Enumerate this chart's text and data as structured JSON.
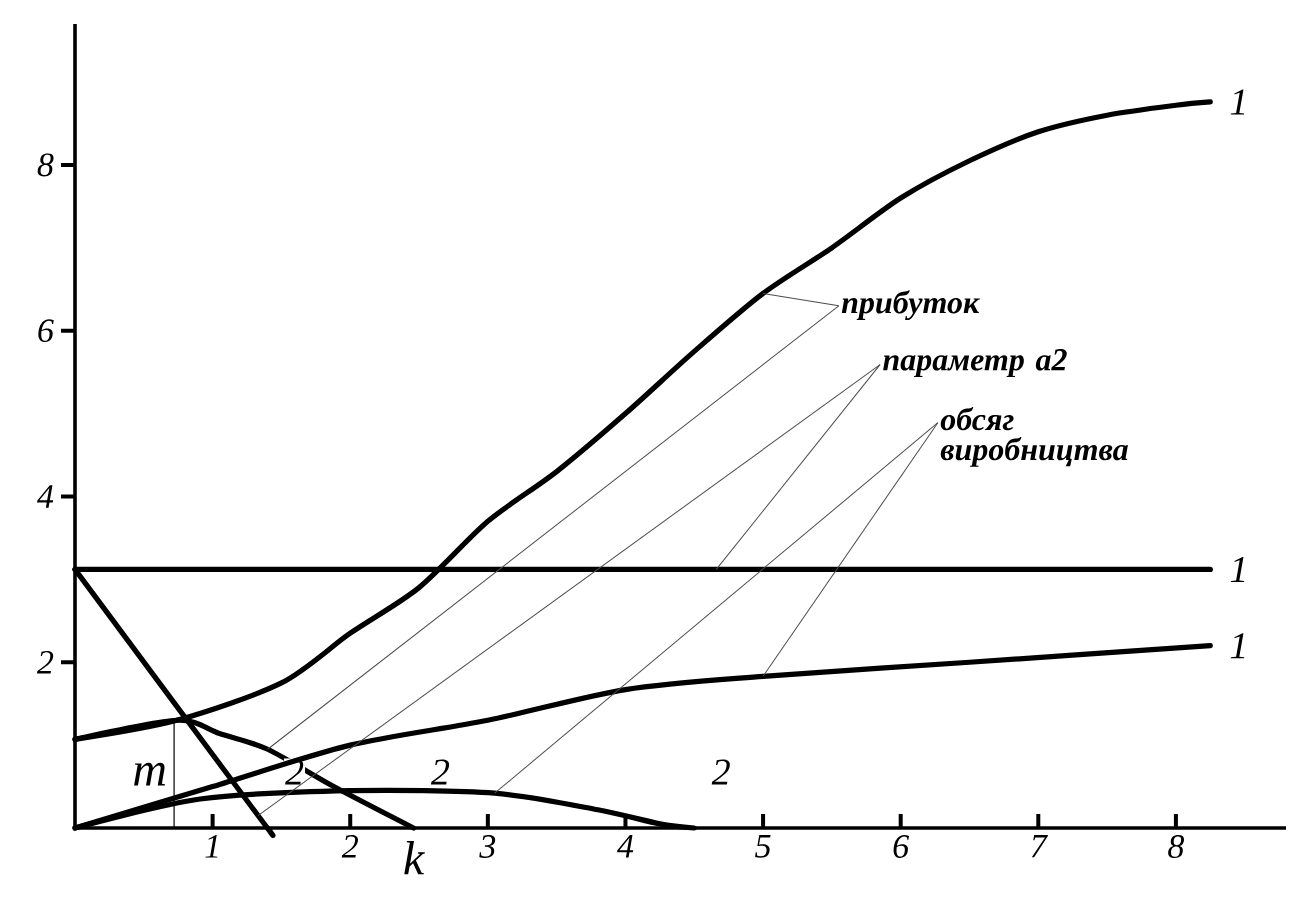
{
  "chart_data": {
    "type": "line",
    "xlim": [
      0,
      8.8
    ],
    "ylim": [
      0,
      9.7
    ],
    "xticks": [
      1,
      2,
      3,
      4,
      5,
      6,
      7,
      8
    ],
    "yticks": [
      2,
      4,
      6,
      8
    ],
    "grid": false,
    "legend": false,
    "line_style": "solid",
    "series": [
      {
        "name": "1",
        "color": "#000000",
        "x": [
          0,
          0.74,
          1.5,
          2,
          2.5,
          3,
          3.5,
          4,
          4.5,
          5,
          5.5,
          6,
          6.5,
          7,
          7.5,
          8,
          8.25
        ],
        "values": [
          1.07,
          1.3,
          1.75,
          2.35,
          2.9,
          3.7,
          4.3,
          5.0,
          5.75,
          6.45,
          7.0,
          7.6,
          8.05,
          8.4,
          8.6,
          8.72,
          8.76
        ]
      },
      {
        "name": "2",
        "color": "#000000",
        "x": [
          0,
          0.74,
          1.05,
          1.4,
          1.88,
          2.46
        ],
        "values": [
          1.07,
          1.3,
          1.14,
          0.95,
          0.5,
          0
        ]
      },
      {
        "name": "1",
        "color": "#000000",
        "x": [
          0,
          8.25
        ],
        "values": [
          3.12,
          3.12
        ]
      },
      {
        "name": "2",
        "color": "#000000",
        "x": [
          0,
          1.33,
          1.4
        ],
        "values": [
          3.12,
          0.15,
          0
        ]
      },
      {
        "name": "1",
        "color": "#000000",
        "x": [
          0,
          1,
          2,
          3,
          4,
          5,
          6.5,
          8.25
        ],
        "values": [
          0,
          0.5,
          1.0,
          1.3,
          1.67,
          1.83,
          2.0,
          2.2
        ]
      },
      {
        "name": "2",
        "color": "#000000",
        "x": [
          0,
          0.91,
          2.0,
          3.05,
          3.8,
          4.25,
          4.5
        ],
        "values": [
          0,
          0.35,
          0.45,
          0.42,
          0.22,
          0.05,
          0
        ]
      }
    ],
    "annotations": [
      {
        "text": "прибуток",
        "x": 5,
        "y": 6.45
      },
      {
        "text": "параметр **a2**",
        "x": 4.66,
        "y": 3.12
      },
      {
        "text": "обсяг виробництва",
        "x": 5,
        "y": 1.83
      },
      {
        "text": "m",
        "x": 0.72,
        "y": 1.3
      },
      {
        "text": "k",
        "x": 2.46,
        "y": 0
      }
    ]
  }
}
